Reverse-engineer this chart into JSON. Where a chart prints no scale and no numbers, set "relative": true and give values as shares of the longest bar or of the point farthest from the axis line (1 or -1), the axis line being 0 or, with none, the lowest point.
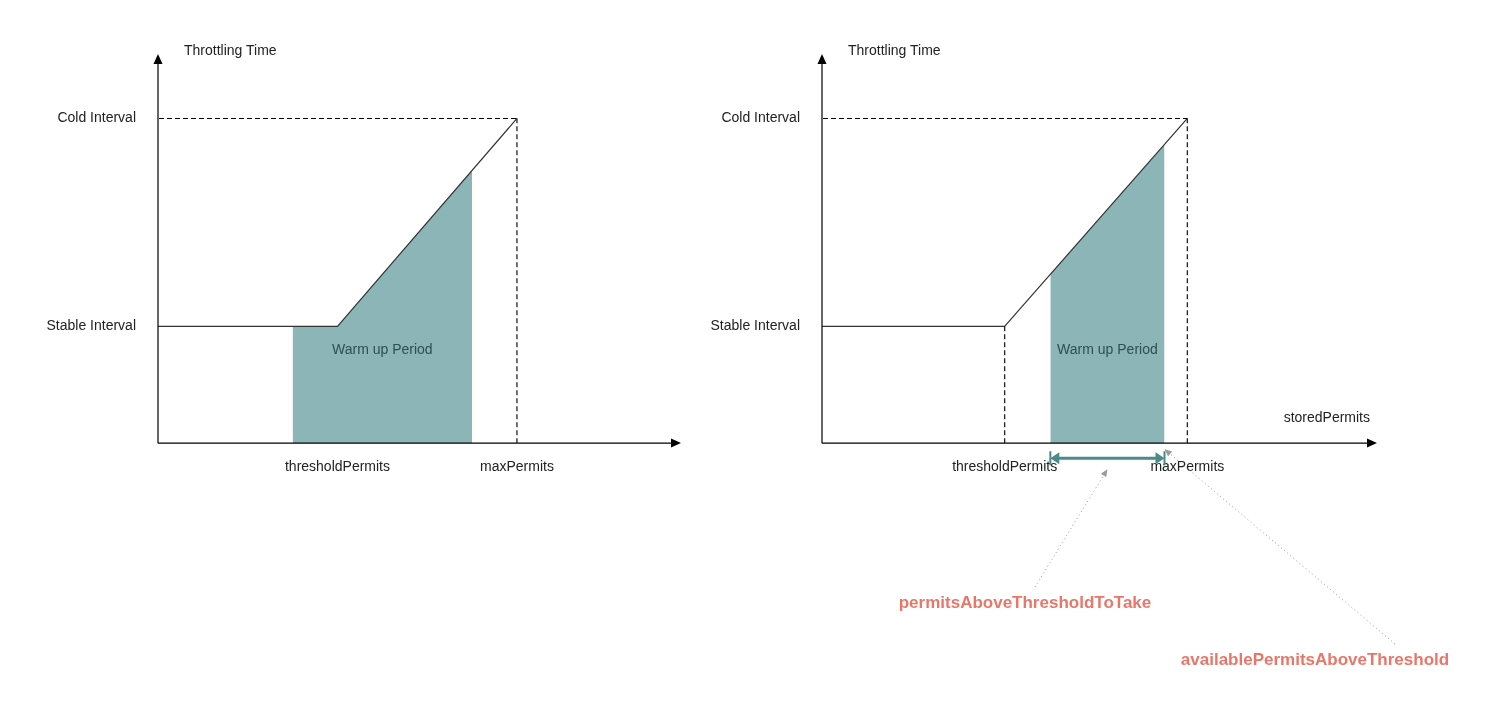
{
  "chart_data": [
    {
      "type": "line",
      "relative": true,
      "ylabel": "Throttling Time",
      "categories": [
        null,
        null,
        null,
        null,
        null,
        null,
        null,
        null,
        "thresholdPermits",
        null,
        null,
        null,
        null,
        null,
        null,
        null,
        "maxPermits",
        null,
        null,
        null,
        null,
        null,
        null,
        null
      ],
      "series": [
        {
          "type": "area",
          "color": "#8bb5b6",
          "values": [
            null,
            null,
            null,
            null,
            null,
            null,
            0.36,
            null,
            0.36,
            null,
            null,
            null,
            null,
            null,
            0.84,
            null,
            null,
            null,
            null,
            null,
            null,
            null,
            null,
            null
          ]
        },
        {
          "type": "line",
          "color": "#333333",
          "values": [
            0.36,
            null,
            null,
            null,
            null,
            null,
            null,
            null,
            0.36,
            null,
            null,
            null,
            null,
            null,
            null,
            null,
            1,
            null,
            null,
            null,
            null,
            null,
            null,
            null
          ]
        }
      ],
      "ref_lines": [
        {
          "axis": "y",
          "value": 1,
          "label": "Cold Interval",
          "line_style": "dashed"
        },
        {
          "axis": "x",
          "value": "maxPermits",
          "line_style": "dashed"
        }
      ],
      "annotations": [
        "Stable Interval",
        "Warm up Period"
      ],
      "grid": false,
      "legend": false
    },
    {
      "type": "line",
      "relative": true,
      "ylabel": "Throttling Time",
      "xlabel": "storedPermits",
      "categories": [
        null,
        null,
        null,
        null,
        null,
        null,
        null,
        null,
        "thresholdPermits",
        null,
        null,
        null,
        null,
        null,
        null,
        null,
        "maxPermits",
        null,
        null,
        null,
        null,
        null,
        null,
        null,
        null
      ],
      "series": [
        {
          "type": "area",
          "color": "#8bb5b6",
          "values": [
            null,
            null,
            null,
            null,
            null,
            null,
            null,
            null,
            null,
            null,
            0.52,
            null,
            null,
            null,
            null,
            0.92,
            null,
            null,
            null,
            null,
            null,
            null,
            null,
            null,
            null
          ]
        },
        {
          "type": "line",
          "color": "#333333",
          "values": [
            0.36,
            null,
            null,
            null,
            null,
            null,
            null,
            null,
            0.36,
            null,
            null,
            null,
            null,
            null,
            null,
            null,
            1,
            null,
            null,
            null,
            null,
            null,
            null,
            null,
            null
          ]
        }
      ],
      "ref_lines": [
        {
          "axis": "y",
          "value": 1,
          "label": "Cold Interval",
          "line_style": "dashed"
        },
        {
          "axis": "x",
          "value": "thresholdPermits",
          "line_style": "dashed"
        },
        {
          "axis": "x",
          "value": "maxPermits",
          "line_style": "dashed"
        }
      ],
      "annotations": [
        "Stable Interval",
        "Warm up Period",
        "permitsAboveThresholdToTake",
        "availablePermitsAboveThreshold"
      ],
      "grid": false,
      "legend": false
    }
  ]
}
